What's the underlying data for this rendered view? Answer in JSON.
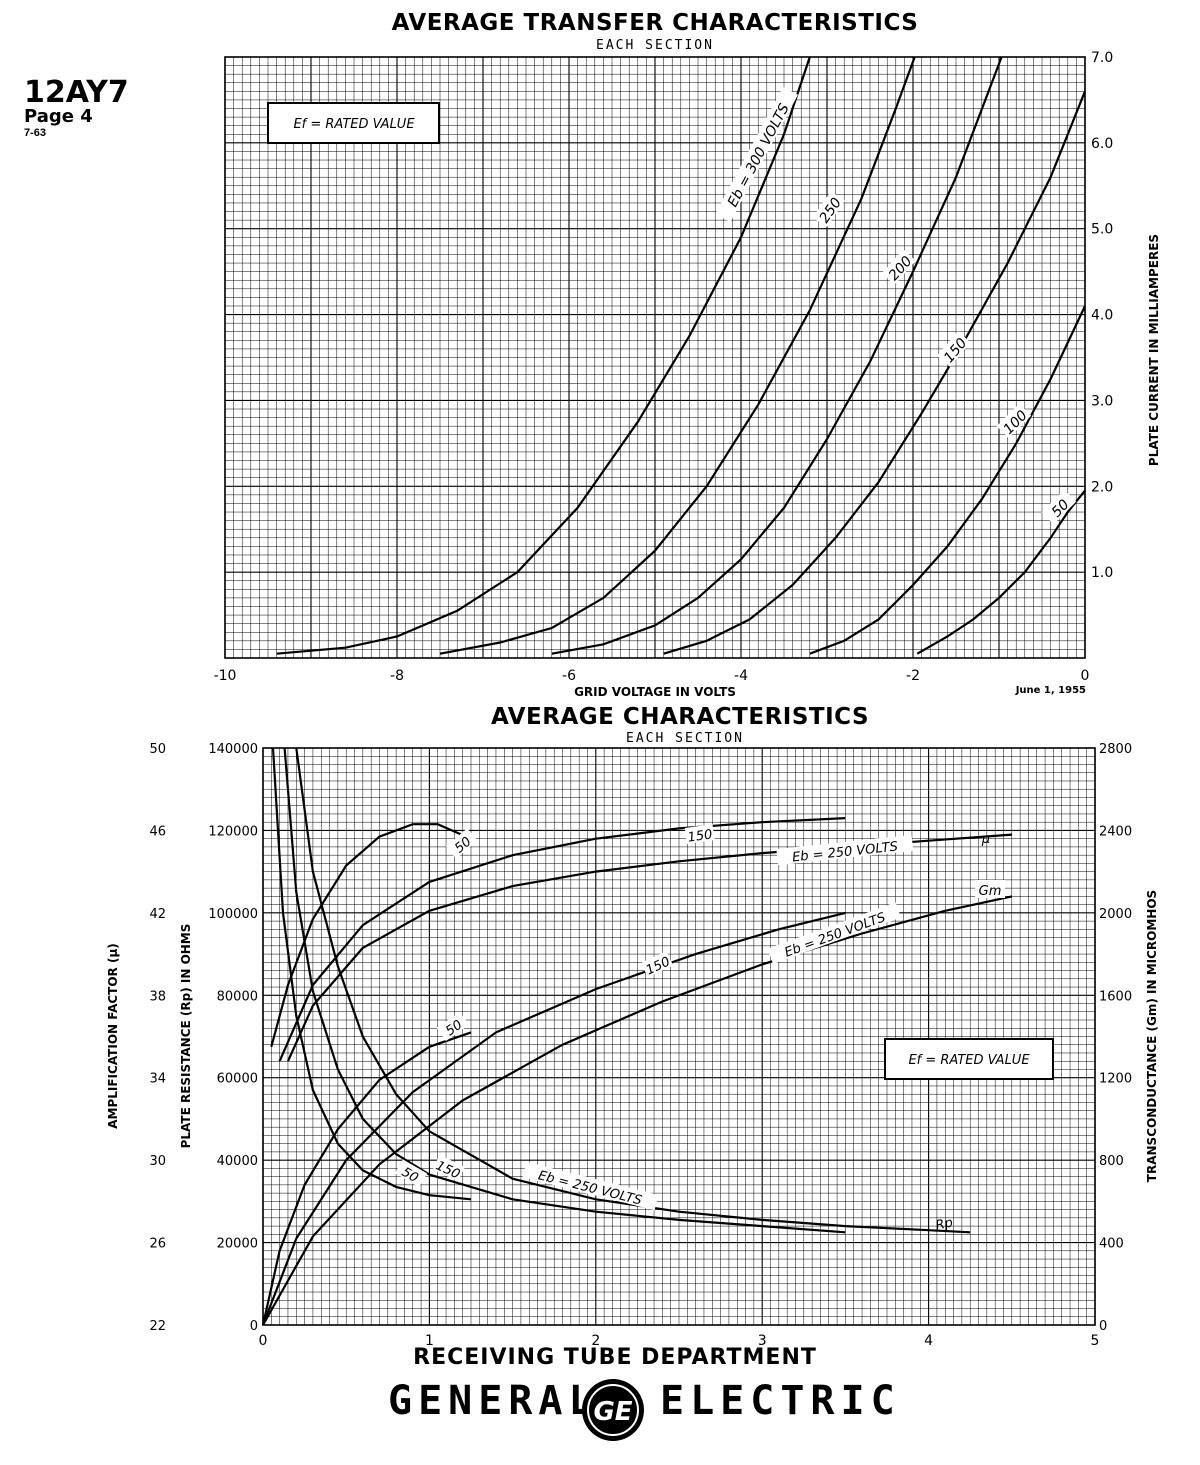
{
  "header": {
    "tube_type": "12AY7",
    "page": "Page 4",
    "date_code": "7-63"
  },
  "footer": {
    "department": "RECEIVING TUBE DEPARTMENT",
    "brand_left": "GENERAL",
    "brand_right": "ELECTRIC",
    "logo_text": "GE"
  },
  "chart_data": [
    {
      "type": "line",
      "title": "AVERAGE TRANSFER CHARACTERISTICS",
      "subtitle": "EACH SECTION",
      "xlabel": "GRID VOLTAGE IN VOLTS",
      "ylabel": "PLATE CURRENT IN MILLIAMPERES",
      "xlim": [
        -10,
        0
      ],
      "ylim": [
        0,
        7.0
      ],
      "x_ticks": [
        "-10",
        "-8",
        "-6",
        "-4",
        "-2",
        "0"
      ],
      "y_ticks": [
        "1.0",
        "2.0",
        "3.0",
        "4.0",
        "5.0",
        "6.0",
        "7.0"
      ],
      "grid": true,
      "note": "Ef = RATED VALUE",
      "date": "June 1, 1955",
      "series": [
        {
          "name": "Eb = 300 VOLTS",
          "x": [
            -9.4,
            -8.6,
            -8.0,
            -7.3,
            -6.6,
            -5.9,
            -5.2,
            -4.6,
            -4.0,
            -3.5,
            -3.2
          ],
          "y": [
            0.05,
            0.12,
            0.25,
            0.55,
            1.0,
            1.75,
            2.75,
            3.75,
            4.9,
            6.1,
            7.0
          ]
        },
        {
          "name": "250",
          "x": [
            -7.5,
            -6.8,
            -6.2,
            -5.6,
            -5.0,
            -4.4,
            -3.8,
            -3.2,
            -2.6,
            -2.2,
            -1.98
          ],
          "y": [
            0.05,
            0.18,
            0.35,
            0.7,
            1.25,
            2.0,
            2.95,
            4.05,
            5.35,
            6.4,
            7.0
          ]
        },
        {
          "name": "200",
          "x": [
            -6.2,
            -5.6,
            -5.0,
            -4.5,
            -4.0,
            -3.5,
            -3.0,
            -2.5,
            -2.0,
            -1.5,
            -0.97
          ],
          "y": [
            0.05,
            0.16,
            0.38,
            0.7,
            1.15,
            1.75,
            2.55,
            3.45,
            4.5,
            5.6,
            7.0
          ]
        },
        {
          "name": "150",
          "x": [
            -4.9,
            -4.4,
            -3.9,
            -3.4,
            -2.9,
            -2.4,
            -1.9,
            -1.4,
            -0.9,
            -0.4,
            0.0
          ],
          "y": [
            0.05,
            0.2,
            0.45,
            0.85,
            1.4,
            2.05,
            2.85,
            3.7,
            4.6,
            5.6,
            6.6
          ]
        },
        {
          "name": "100",
          "x": [
            -3.2,
            -2.8,
            -2.4,
            -2.0,
            -1.6,
            -1.2,
            -0.8,
            -0.4,
            0.0
          ],
          "y": [
            0.05,
            0.2,
            0.45,
            0.85,
            1.3,
            1.85,
            2.5,
            3.25,
            4.1
          ]
        },
        {
          "name": "50",
          "x": [
            -1.95,
            -1.6,
            -1.3,
            -1.0,
            -0.7,
            -0.4,
            -0.2,
            0.0
          ],
          "y": [
            0.05,
            0.25,
            0.45,
            0.7,
            1.0,
            1.4,
            1.7,
            1.95
          ]
        }
      ]
    },
    {
      "type": "line",
      "title": "AVERAGE CHARACTERISTICS",
      "subtitle": "EACH SECTION",
      "xlabel": "PLATE CURRENT IN MILLIAMPERES",
      "ylabel_left_outer": "AMPLIFICATION FACTOR (μ)",
      "ylabel_left_inner": "PLATE RESISTANCE (Rp) IN OHMS",
      "ylabel_right": "TRANSCONDUCTANCE (Gm) IN MICROMHOS",
      "xlim": [
        0,
        5
      ],
      "x_ticks": [
        "0",
        "1",
        "2",
        "3",
        "4",
        "5"
      ],
      "rp_axis": {
        "lim": [
          0,
          140000
        ],
        "ticks": [
          "0",
          "20000",
          "40000",
          "60000",
          "80000",
          "100000",
          "120000",
          "140000"
        ]
      },
      "mu_axis": {
        "lim": [
          22,
          50
        ],
        "ticks": [
          "22",
          "26",
          "30",
          "34",
          "38",
          "42",
          "46",
          "50"
        ]
      },
      "gm_axis": {
        "lim": [
          0,
          2800
        ],
        "ticks": [
          "0",
          "400",
          "800",
          "1200",
          "1600",
          "2000",
          "2400",
          "2800"
        ]
      },
      "grid": true,
      "note": "Ef = RATED VALUE",
      "date": "June 1, 1955",
      "labels": {
        "mu": "μ",
        "gm": "Gm",
        "rp": "Rp"
      },
      "series": [
        {
          "name": "50",
          "quantity": "mu",
          "x": [
            0.05,
            0.15,
            0.3,
            0.5,
            0.7,
            0.9,
            1.05,
            1.25
          ],
          "y": [
            35.5,
            38.5,
            41.7,
            44.3,
            45.7,
            46.3,
            46.3,
            45.6
          ]
        },
        {
          "name": "150",
          "quantity": "mu",
          "x": [
            0.1,
            0.3,
            0.6,
            1.0,
            1.5,
            2.0,
            2.5,
            3.0,
            3.5
          ],
          "y": [
            34.8,
            38.5,
            41.4,
            43.5,
            44.8,
            45.6,
            46.1,
            46.4,
            46.6
          ]
        },
        {
          "name": "Eb = 250 VOLTS",
          "quantity": "mu",
          "x": [
            0.15,
            0.3,
            0.6,
            1.0,
            1.5,
            2.0,
            2.5,
            3.0,
            3.5,
            4.0,
            4.5
          ],
          "y": [
            34.8,
            37.5,
            40.3,
            42.1,
            43.3,
            44.0,
            44.5,
            44.9,
            45.2,
            45.5,
            45.8
          ]
        },
        {
          "name": "50",
          "quantity": "gm",
          "x": [
            0.0,
            0.1,
            0.25,
            0.45,
            0.7,
            1.0,
            1.25
          ],
          "y": [
            0,
            360,
            680,
            950,
            1190,
            1350,
            1420
          ]
        },
        {
          "name": "150",
          "quantity": "gm",
          "x": [
            0.0,
            0.2,
            0.5,
            0.9,
            1.4,
            2.0,
            2.6,
            3.1,
            3.5
          ],
          "y": [
            0,
            420,
            800,
            1130,
            1420,
            1630,
            1800,
            1920,
            2000
          ]
        },
        {
          "name": "Eb = 250 VOLTS",
          "quantity": "gm",
          "x": [
            0.0,
            0.3,
            0.7,
            1.2,
            1.8,
            2.4,
            3.0,
            3.6,
            4.1,
            4.5
          ],
          "y": [
            0,
            430,
            780,
            1090,
            1360,
            1570,
            1750,
            1900,
            2010,
            2080
          ]
        },
        {
          "name": "50",
          "quantity": "rp",
          "x": [
            0.06,
            0.12,
            0.2,
            0.3,
            0.45,
            0.6,
            0.8,
            1.0,
            1.25
          ],
          "y": [
            140000,
            100000,
            75000,
            57000,
            44000,
            37500,
            33500,
            31500,
            30500
          ]
        },
        {
          "name": "150",
          "quantity": "rp",
          "x": [
            0.13,
            0.2,
            0.3,
            0.45,
            0.6,
            0.8,
            1.0,
            1.5,
            2.0,
            2.5,
            3.0,
            3.5
          ],
          "y": [
            140000,
            105000,
            81000,
            62000,
            50000,
            41500,
            36500,
            30500,
            27500,
            25500,
            24000,
            22500
          ]
        },
        {
          "name": "Eb = 250 VOLTS",
          "quantity": "rp",
          "x": [
            0.2,
            0.3,
            0.45,
            0.6,
            0.8,
            1.0,
            1.5,
            2.0,
            2.5,
            3.0,
            3.5,
            4.0,
            4.25
          ],
          "y": [
            140000,
            110000,
            87000,
            70000,
            56000,
            47000,
            35500,
            30500,
            27500,
            25500,
            24000,
            23000,
            22500
          ]
        }
      ]
    }
  ]
}
